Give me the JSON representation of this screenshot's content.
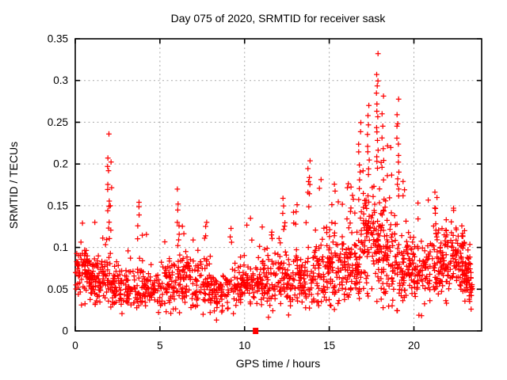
{
  "chart_data": {
    "type": "scatter",
    "title": "Day 075 of 2020, SRMTID for receiver sask",
    "xlabel": "GPS time / hours",
    "ylabel": "SRMTID / TECUs",
    "xlim": [
      0,
      24
    ],
    "ylim": [
      0,
      0.35
    ],
    "xticks": [
      0,
      5,
      10,
      15,
      20
    ],
    "xtick_labels": [
      "0",
      "5",
      "10",
      "15",
      "20"
    ],
    "yticks": [
      0,
      0.05,
      0.1,
      0.15,
      0.2,
      0.25,
      0.3,
      0.35
    ],
    "ytick_labels": [
      "0",
      "0.05",
      "0.1",
      "0.15",
      "0.2",
      "0.25",
      "0.3",
      "0.35"
    ],
    "grid": true,
    "legend": "none",
    "marker": "plus",
    "point_color": "#ff0000",
    "grid_color": "#a9a9a9",
    "axis_color": "#000000",
    "background_color": "#ffffff",
    "description": "Dense red plus-marker scatter of SRMTID vs GPS time; baseline band ~0.03-0.11 TECUs with TID spike columns, largest peak ~0.33 near hour 17.9; single filled square datum at (10.65, 0).",
    "band_profile": [
      [
        0,
        1,
        95,
        0.068,
        0.02
      ],
      [
        1,
        2,
        80,
        0.06,
        0.018
      ],
      [
        2,
        3,
        70,
        0.054,
        0.018
      ],
      [
        3,
        4,
        65,
        0.048,
        0.016
      ],
      [
        4,
        5,
        62,
        0.05,
        0.016
      ],
      [
        5,
        6,
        65,
        0.055,
        0.018
      ],
      [
        6,
        7,
        70,
        0.058,
        0.019
      ],
      [
        7,
        8,
        62,
        0.054,
        0.018
      ],
      [
        8,
        9,
        65,
        0.045,
        0.016
      ],
      [
        9,
        10,
        62,
        0.05,
        0.016
      ],
      [
        10,
        11,
        62,
        0.058,
        0.018
      ],
      [
        11,
        12,
        66,
        0.062,
        0.02
      ],
      [
        12,
        13,
        70,
        0.06,
        0.02
      ],
      [
        13,
        14,
        70,
        0.064,
        0.022
      ],
      [
        14,
        15,
        75,
        0.072,
        0.024
      ],
      [
        15,
        16,
        80,
        0.075,
        0.026
      ],
      [
        16,
        17,
        90,
        0.085,
        0.03
      ],
      [
        17,
        18,
        105,
        0.105,
        0.04
      ],
      [
        18,
        19,
        95,
        0.092,
        0.036
      ],
      [
        19,
        20,
        85,
        0.078,
        0.028
      ],
      [
        20,
        21,
        72,
        0.068,
        0.022
      ],
      [
        21,
        22,
        85,
        0.08,
        0.026
      ],
      [
        22,
        23,
        90,
        0.085,
        0.024
      ],
      [
        23,
        23.45,
        55,
        0.065,
        0.022
      ]
    ],
    "outlier_columns": [
      {
        "x": 1.15,
        "ys": [
          0.133
        ]
      },
      {
        "x": 1.95,
        "ys": [
          0.235,
          0.205,
          0.198,
          0.19,
          0.178,
          0.17,
          0.156,
          0.15,
          0.142,
          0.131,
          0.124
        ]
      },
      {
        "x": 2.08,
        "ys": [
          0.205,
          0.172,
          0.147,
          0.122
        ]
      },
      {
        "x": 3.75,
        "ys": [
          0.155,
          0.149,
          0.139,
          0.126,
          0.112
        ]
      },
      {
        "x": 6.08,
        "ys": [
          0.168,
          0.152,
          0.146,
          0.131,
          0.124,
          0.118,
          0.108
        ]
      },
      {
        "x": 6.35,
        "ys": [
          0.125,
          0.115
        ]
      },
      {
        "x": 7.7,
        "ys": [
          0.131,
          0.124,
          0.116,
          0.109
        ]
      },
      {
        "x": 9.2,
        "ys": [
          0.121,
          0.113,
          0.104
        ]
      },
      {
        "x": 11.6,
        "ys": [
          0.115,
          0.108
        ]
      },
      {
        "x": 12.3,
        "ys": [
          0.158,
          0.149,
          0.14,
          0.128
        ]
      },
      {
        "x": 13.05,
        "ys": [
          0.15,
          0.141
        ]
      },
      {
        "x": 13.8,
        "ys": [
          0.201,
          0.196,
          0.186,
          0.179,
          0.173,
          0.168,
          0.162,
          0.151
        ]
      },
      {
        "x": 14.45,
        "ys": [
          0.181,
          0.172
        ]
      },
      {
        "x": 15.35,
        "ys": [
          0.176,
          0.166
        ]
      },
      {
        "x": 16.3,
        "ys": [
          0.17,
          0.161,
          0.15,
          0.143
        ]
      },
      {
        "x": 16.8,
        "ys": [
          0.25,
          0.238,
          0.225,
          0.212,
          0.2,
          0.19,
          0.181,
          0.172,
          0.16
        ]
      },
      {
        "x": 17.3,
        "ys": [
          0.27,
          0.258,
          0.247,
          0.236,
          0.224,
          0.213,
          0.205,
          0.196,
          0.185
        ]
      },
      {
        "x": 17.85,
        "ys": [
          0.33,
          0.307,
          0.3,
          0.291,
          0.283,
          0.272,
          0.263,
          0.255,
          0.246,
          0.237,
          0.228,
          0.219,
          0.21,
          0.201,
          0.192
        ]
      },
      {
        "x": 18.15,
        "ys": [
          0.28,
          0.262,
          0.248,
          0.233,
          0.219,
          0.206,
          0.194,
          0.183
        ]
      },
      {
        "x": 19.05,
        "ys": [
          0.28,
          0.262,
          0.251,
          0.243,
          0.232,
          0.221,
          0.212,
          0.202,
          0.193,
          0.184,
          0.176,
          0.168,
          0.163
        ]
      },
      {
        "x": 19.4,
        "ys": [
          0.176,
          0.169,
          0.163
        ]
      },
      {
        "x": 20.3,
        "ys": [
          0.152
        ]
      },
      {
        "x": 21.3,
        "ys": [
          0.165,
          0.158,
          0.15,
          0.144,
          0.138
        ]
      },
      {
        "x": 22.3,
        "ys": [
          0.15,
          0.143
        ]
      }
    ],
    "special_points": [
      {
        "x": 10.65,
        "y": 0.0,
        "marker": "filled-square"
      }
    ]
  }
}
